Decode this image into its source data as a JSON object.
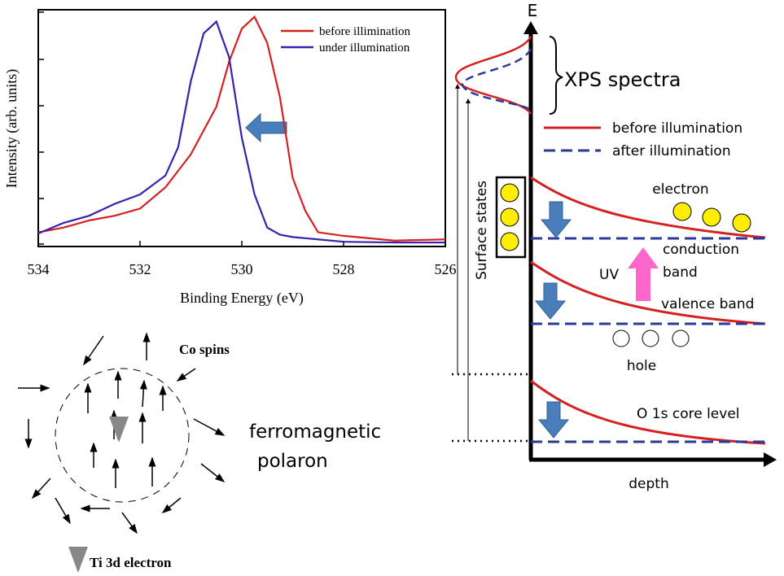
{
  "chart_data": {
    "type": "line",
    "x_label": "Binding Energy (eV)",
    "y_label": "Intensity (arb. units)",
    "x": [
      534,
      533.5,
      533,
      532.5,
      532,
      531.5,
      531.25,
      531,
      530.75,
      530.5,
      530.25,
      530,
      529.75,
      529.5,
      529.25,
      529,
      528.75,
      528.5,
      528,
      527,
      526
    ],
    "series": [
      {
        "name": "before illimination",
        "color": "#d42020",
        "values": [
          0.06,
          0.08,
          0.11,
          0.13,
          0.16,
          0.25,
          0.32,
          0.39,
          0.49,
          0.59,
          0.78,
          0.92,
          0.97,
          0.86,
          0.63,
          0.29,
          0.15,
          0.06,
          0.045,
          0.025,
          0.03
        ]
      },
      {
        "name": "under illumination",
        "color": "#3a1fb0",
        "values": [
          0.055,
          0.1,
          0.13,
          0.18,
          0.22,
          0.3,
          0.42,
          0.7,
          0.9,
          0.95,
          0.8,
          0.46,
          0.22,
          0.08,
          0.05,
          0.04,
          0.035,
          0.03,
          0.02,
          0.017,
          0.017
        ]
      }
    ],
    "xlim": [
      534,
      526
    ],
    "xticks": [
      534,
      532,
      530,
      528,
      526
    ],
    "ylim": [
      0,
      1
    ]
  },
  "band_diagram": {
    "axis_y": "E",
    "axis_x": "depth",
    "xps": "XPS spectra",
    "legend": [
      "before illumination",
      "after illumination"
    ],
    "electron": "electron",
    "conduction": [
      "conduction",
      "band"
    ],
    "uv": "UV",
    "valence": "valence band",
    "hole": "hole",
    "core": "O 1s core level",
    "surface": "Surface states"
  },
  "polaron": {
    "co_spins": "Co spins",
    "label": [
      "ferromagnetic",
      "polaron"
    ],
    "ti": "Ti 3d electron"
  }
}
